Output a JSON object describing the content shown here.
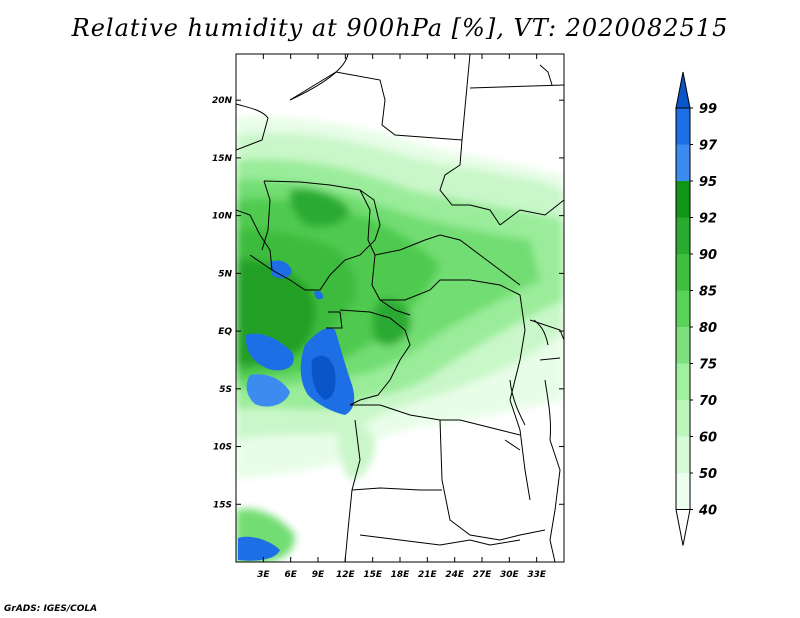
{
  "title": "Relative humidity at 900hPa [%], VT: 2020082515",
  "footer": "GrADS: IGES/COLA",
  "map": {
    "lon_range": [
      0,
      36
    ],
    "lat_range": [
      -20,
      24
    ],
    "lon_ticks": [
      3,
      6,
      9,
      12,
      15,
      18,
      21,
      24,
      27,
      30,
      33
    ],
    "lon_tick_labels": [
      "3E",
      "6E",
      "9E",
      "12E",
      "15E",
      "18E",
      "21E",
      "24E",
      "27E",
      "30E",
      "33E"
    ],
    "lat_ticks": [
      20,
      15,
      10,
      5,
      0,
      -5,
      -10,
      -15
    ],
    "lat_tick_labels": [
      "20N",
      "15N",
      "10N",
      "5N",
      "EQ",
      "5S",
      "10S",
      "15S"
    ]
  },
  "colorbar": {
    "levels": [
      "99",
      "97",
      "95",
      "92",
      "90",
      "85",
      "80",
      "75",
      "70",
      "60",
      "50",
      "40"
    ],
    "colors": [
      "#0a55c8",
      "#1e6ee6",
      "#3c8cf0",
      "#0f9617",
      "#2aaa30",
      "#3fbe3f",
      "#5ad25a",
      "#7ee07e",
      "#9ff09f",
      "#bdf6bd",
      "#d7fad7",
      "#eefeee",
      "#ffffff"
    ]
  }
}
